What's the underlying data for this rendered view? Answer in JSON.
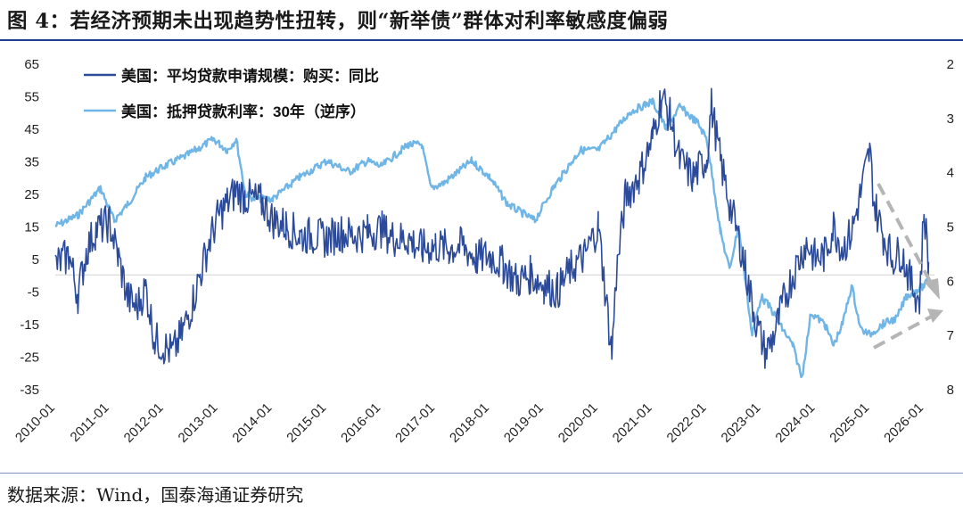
{
  "header": {
    "title": "图 4：若经济预期未出现趋势性扭转，则“新举债”群体对利率敏感度偏弱"
  },
  "footer": {
    "source": "数据来源：Wind，国泰海通证券研究"
  },
  "colors": {
    "series1": "#2b4a99",
    "series2": "#6fb6e6",
    "arrows": "#b5b5b5",
    "axis": "#d0d0d0"
  },
  "chart_data": {
    "type": "line",
    "grid": false,
    "legend_position": "top-left",
    "left_axis": {
      "ylim": [
        -35,
        65
      ],
      "ticks": [
        -35,
        -25,
        -15,
        -5,
        5,
        15,
        25,
        35,
        45,
        55,
        65
      ]
    },
    "right_axis": {
      "ylim": [
        8,
        2
      ],
      "inverted": true,
      "ticks": [
        2,
        3,
        4,
        5,
        6,
        7,
        8
      ]
    },
    "x_ticks": [
      "2010-01",
      "2011-01",
      "2012-01",
      "2013-01",
      "2014-01",
      "2015-01",
      "2016-01",
      "2017-01",
      "2018-01",
      "2019-01",
      "2020-01",
      "2021-01",
      "2022-01",
      "2023-01",
      "2024-01",
      "2025-01",
      "2026-01"
    ],
    "series": [
      {
        "name": "美国：平均贷款申请规模：购买：同比",
        "axis": "left",
        "points": [
          [
            "2010-01",
            3
          ],
          [
            "2010-04",
            6
          ],
          [
            "2010-06",
            -6
          ],
          [
            "2010-08",
            8
          ],
          [
            "2010-10",
            14
          ],
          [
            "2011-01",
            16
          ],
          [
            "2011-03",
            5
          ],
          [
            "2011-05",
            -7
          ],
          [
            "2011-07",
            -10
          ],
          [
            "2011-09",
            -4
          ],
          [
            "2011-11",
            -20
          ],
          [
            "2012-01",
            -22
          ],
          [
            "2012-03",
            -24
          ],
          [
            "2012-05",
            -18
          ],
          [
            "2012-07",
            -10
          ],
          [
            "2012-09",
            0
          ],
          [
            "2012-11",
            10
          ],
          [
            "2013-01",
            18
          ],
          [
            "2013-03",
            22
          ],
          [
            "2013-05",
            26
          ],
          [
            "2013-07",
            24
          ],
          [
            "2013-09",
            23
          ],
          [
            "2013-11",
            22
          ],
          [
            "2014-01",
            17
          ],
          [
            "2014-04",
            15
          ],
          [
            "2014-07",
            12
          ],
          [
            "2014-10",
            12
          ],
          [
            "2015-01",
            11
          ],
          [
            "2015-04",
            13
          ],
          [
            "2015-07",
            12
          ],
          [
            "2015-10",
            13
          ],
          [
            "2016-01",
            14
          ],
          [
            "2016-04",
            11
          ],
          [
            "2016-07",
            11
          ],
          [
            "2016-10",
            8
          ],
          [
            "2017-01",
            9
          ],
          [
            "2017-04",
            8
          ],
          [
            "2017-07",
            9
          ],
          [
            "2017-10",
            5
          ],
          [
            "2018-01",
            6
          ],
          [
            "2018-04",
            3
          ],
          [
            "2018-07",
            -2
          ],
          [
            "2018-10",
            0
          ],
          [
            "2019-01",
            -3
          ],
          [
            "2019-04",
            -5
          ],
          [
            "2019-07",
            2
          ],
          [
            "2019-10",
            6
          ],
          [
            "2020-01",
            15
          ],
          [
            "2020-02",
            2
          ],
          [
            "2020-04",
            -24
          ],
          [
            "2020-05",
            0
          ],
          [
            "2020-07",
            24
          ],
          [
            "2020-10",
            30
          ],
          [
            "2021-01",
            42
          ],
          [
            "2021-03",
            55
          ],
          [
            "2021-05",
            48
          ],
          [
            "2021-07",
            35
          ],
          [
            "2021-10",
            30
          ],
          [
            "2022-01",
            36
          ],
          [
            "2022-02",
            52
          ],
          [
            "2022-04",
            35
          ],
          [
            "2022-06",
            22
          ],
          [
            "2022-09",
            6
          ],
          [
            "2022-10",
            -2
          ],
          [
            "2022-12",
            -15
          ],
          [
            "2023-02",
            -24
          ],
          [
            "2023-04",
            -18
          ],
          [
            "2023-06",
            -8
          ],
          [
            "2023-08",
            0
          ],
          [
            "2023-11",
            10
          ],
          [
            "2024-01",
            5
          ],
          [
            "2024-03",
            6
          ],
          [
            "2024-05",
            15
          ],
          [
            "2024-07",
            8
          ],
          [
            "2024-09",
            13
          ],
          [
            "2024-11",
            25
          ],
          [
            "2025-01",
            38
          ],
          [
            "2025-02",
            22
          ],
          [
            "2025-04",
            12
          ],
          [
            "2025-06",
            5
          ],
          [
            "2025-08",
            7
          ],
          [
            "2025-10",
            -2
          ],
          [
            "2025-12",
            -8
          ],
          [
            "2026-01",
            20
          ],
          [
            "2026-02",
            4
          ]
        ]
      },
      {
        "name": "美国：抵押贷款利率：30年（逆序）",
        "axis": "right",
        "points": [
          [
            "2010-01",
            5.0
          ],
          [
            "2010-06",
            4.8
          ],
          [
            "2010-11",
            4.3
          ],
          [
            "2011-02",
            4.9
          ],
          [
            "2011-05",
            4.6
          ],
          [
            "2011-09",
            4.1
          ],
          [
            "2012-01",
            3.9
          ],
          [
            "2012-06",
            3.7
          ],
          [
            "2012-12",
            3.4
          ],
          [
            "2013-03",
            3.6
          ],
          [
            "2013-05",
            3.4
          ],
          [
            "2013-07",
            4.4
          ],
          [
            "2013-09",
            4.5
          ],
          [
            "2014-01",
            4.5
          ],
          [
            "2014-07",
            4.1
          ],
          [
            "2015-01",
            3.8
          ],
          [
            "2015-06",
            4.0
          ],
          [
            "2015-10",
            3.8
          ],
          [
            "2016-01",
            3.9
          ],
          [
            "2016-07",
            3.5
          ],
          [
            "2016-10",
            3.5
          ],
          [
            "2016-12",
            4.3
          ],
          [
            "2017-03",
            4.2
          ],
          [
            "2017-09",
            3.8
          ],
          [
            "2018-01",
            4.1
          ],
          [
            "2018-05",
            4.6
          ],
          [
            "2018-11",
            4.9
          ],
          [
            "2019-03",
            4.3
          ],
          [
            "2019-09",
            3.6
          ],
          [
            "2020-01",
            3.6
          ],
          [
            "2020-05",
            3.2
          ],
          [
            "2020-08",
            2.9
          ],
          [
            "2021-01",
            2.7
          ],
          [
            "2021-04",
            3.2
          ],
          [
            "2021-07",
            2.8
          ],
          [
            "2021-11",
            3.1
          ],
          [
            "2022-01",
            3.4
          ],
          [
            "2022-04",
            5.1
          ],
          [
            "2022-06",
            5.8
          ],
          [
            "2022-08",
            5.0
          ],
          [
            "2022-11",
            7.0
          ],
          [
            "2023-01",
            6.3
          ],
          [
            "2023-03",
            6.5
          ],
          [
            "2023-05",
            6.8
          ],
          [
            "2023-08",
            7.2
          ],
          [
            "2023-10",
            7.8
          ],
          [
            "2023-12",
            6.6
          ],
          [
            "2024-03",
            6.8
          ],
          [
            "2024-05",
            7.2
          ],
          [
            "2024-07",
            6.8
          ],
          [
            "2024-09",
            6.1
          ],
          [
            "2024-11",
            6.9
          ],
          [
            "2025-01",
            7.0
          ],
          [
            "2025-04",
            6.8
          ],
          [
            "2025-07",
            6.7
          ],
          [
            "2025-09",
            6.3
          ],
          [
            "2025-11",
            6.2
          ],
          [
            "2026-01",
            6.1
          ],
          [
            "2026-02",
            6.0
          ]
        ]
      }
    ]
  }
}
